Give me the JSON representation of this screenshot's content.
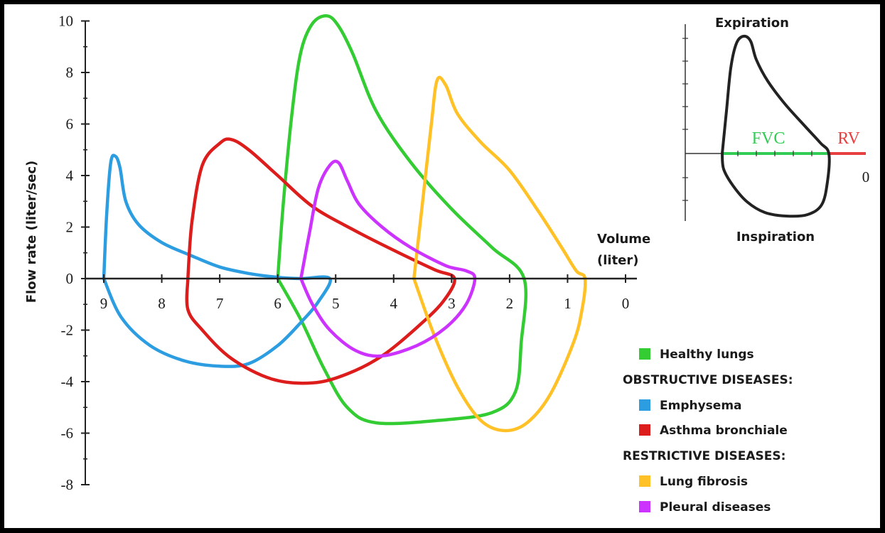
{
  "chart_data": [
    {
      "type": "line",
      "ylabel": "Flow rate (liter/sec)",
      "xlabel": "Volume (liter)",
      "xlim": [
        9,
        0
      ],
      "ylim": [
        -8,
        10
      ],
      "x_ticks": [
        "9",
        "8",
        "7",
        "6",
        "5",
        "4",
        "3",
        "2",
        "1",
        "0"
      ],
      "y_ticks": [
        "10",
        "8",
        "6",
        "4",
        "2",
        "0",
        "-2",
        "-4",
        "-6",
        "-8"
      ],
      "xlabel_lines": [
        "Volume",
        "(liter)"
      ],
      "series": [
        {
          "name": "Healthy lungs",
          "color": "#33cc33",
          "points": [
            [
              6.0,
              0
            ],
            [
              5.9,
              3
            ],
            [
              5.75,
              6.5
            ],
            [
              5.6,
              8.8
            ],
            [
              5.4,
              9.9
            ],
            [
              5.15,
              10.2
            ],
            [
              4.95,
              9.8
            ],
            [
              4.7,
              8.7
            ],
            [
              4.3,
              6.5
            ],
            [
              3.7,
              4.5
            ],
            [
              3.0,
              2.7
            ],
            [
              2.3,
              1.2
            ],
            [
              1.75,
              0
            ],
            [
              1.8,
              -2.5
            ],
            [
              1.9,
              -4.4
            ],
            [
              2.3,
              -5.2
            ],
            [
              3.2,
              -5.5
            ],
            [
              4.3,
              -5.6
            ],
            [
              4.8,
              -5.0
            ],
            [
              5.2,
              -3.5
            ],
            [
              5.6,
              -1.6
            ],
            [
              6.0,
              0
            ]
          ]
        },
        {
          "name": "Emphysema",
          "color": "#2b9de0",
          "points": [
            [
              9.0,
              0
            ],
            [
              8.95,
              2.5
            ],
            [
              8.88,
              4.5
            ],
            [
              8.8,
              4.75
            ],
            [
              8.72,
              4.3
            ],
            [
              8.62,
              3.0
            ],
            [
              8.4,
              2.1
            ],
            [
              8.0,
              1.4
            ],
            [
              7.5,
              0.9
            ],
            [
              7.0,
              0.45
            ],
            [
              6.5,
              0.2
            ],
            [
              6.0,
              0.05
            ],
            [
              5.6,
              0
            ],
            [
              5.1,
              0
            ],
            [
              5.3,
              -0.9
            ],
            [
              5.6,
              -1.7
            ],
            [
              6.0,
              -2.6
            ],
            [
              6.5,
              -3.3
            ],
            [
              7.0,
              -3.4
            ],
            [
              7.6,
              -3.2
            ],
            [
              8.2,
              -2.6
            ],
            [
              8.7,
              -1.5
            ],
            [
              9.0,
              0
            ]
          ]
        },
        {
          "name": "Asthma bronchiale",
          "color": "#dd1c1c",
          "points": [
            [
              7.55,
              0
            ],
            [
              7.48,
              2.2
            ],
            [
              7.3,
              4.4
            ],
            [
              7.0,
              5.25
            ],
            [
              6.8,
              5.4
            ],
            [
              6.5,
              5.0
            ],
            [
              6.0,
              4.0
            ],
            [
              5.4,
              2.8
            ],
            [
              4.7,
              1.9
            ],
            [
              4.0,
              1.1
            ],
            [
              3.3,
              0.35
            ],
            [
              2.95,
              0
            ],
            [
              3.15,
              -0.9
            ],
            [
              3.6,
              -1.9
            ],
            [
              4.2,
              -3.0
            ],
            [
              4.8,
              -3.7
            ],
            [
              5.4,
              -4.05
            ],
            [
              6.1,
              -3.9
            ],
            [
              6.8,
              -3.1
            ],
            [
              7.3,
              -2.0
            ],
            [
              7.55,
              -1.2
            ],
            [
              7.55,
              0
            ]
          ]
        },
        {
          "name": "Lung fibrosis",
          "color": "#ffc125",
          "points": [
            [
              3.65,
              0
            ],
            [
              3.5,
              3.0
            ],
            [
              3.35,
              6.0
            ],
            [
              3.25,
              7.7
            ],
            [
              3.1,
              7.5
            ],
            [
              2.9,
              6.4
            ],
            [
              2.5,
              5.3
            ],
            [
              2.0,
              4.2
            ],
            [
              1.5,
              2.6
            ],
            [
              1.1,
              1.2
            ],
            [
              0.85,
              0.3
            ],
            [
              0.7,
              0
            ],
            [
              0.75,
              -1.2
            ],
            [
              0.9,
              -2.5
            ],
            [
              1.3,
              -4.5
            ],
            [
              1.7,
              -5.6
            ],
            [
              2.1,
              -5.9
            ],
            [
              2.5,
              -5.5
            ],
            [
              2.9,
              -4.2
            ],
            [
              3.3,
              -2.2
            ],
            [
              3.65,
              0
            ]
          ]
        },
        {
          "name": "Pleural diseases",
          "color": "#cc33ff",
          "points": [
            [
              5.6,
              0
            ],
            [
              5.45,
              1.8
            ],
            [
              5.3,
              3.5
            ],
            [
              5.1,
              4.4
            ],
            [
              4.95,
              4.5
            ],
            [
              4.8,
              3.8
            ],
            [
              4.6,
              2.9
            ],
            [
              4.2,
              2.0
            ],
            [
              3.7,
              1.2
            ],
            [
              3.1,
              0.5
            ],
            [
              2.75,
              0.3
            ],
            [
              2.6,
              0
            ],
            [
              2.75,
              -1.0
            ],
            [
              3.1,
              -1.9
            ],
            [
              3.6,
              -2.6
            ],
            [
              4.2,
              -3.0
            ],
            [
              4.65,
              -2.8
            ],
            [
              5.1,
              -2.0
            ],
            [
              5.4,
              -1.0
            ],
            [
              5.6,
              0
            ]
          ]
        }
      ]
    },
    {
      "type": "line",
      "title_top": "Expiration",
      "title_bottom": "Inspiration",
      "fvc_label": "FVC",
      "rv_label": "RV",
      "zero_label": "0",
      "color": "#222222",
      "fvc_color": "#33cc55",
      "rv_color": "#e84040"
    }
  ],
  "legend": [
    {
      "kind": "item",
      "label": "Healthy lungs",
      "color": "#33cc33"
    },
    {
      "kind": "header",
      "label": "OBSTRUCTIVE DISEASES:"
    },
    {
      "kind": "item",
      "label": "Emphysema",
      "color": "#2b9de0"
    },
    {
      "kind": "item",
      "label": "Asthma bronchiale",
      "color": "#dd1c1c"
    },
    {
      "kind": "header",
      "label": "RESTRICTIVE DISEASES:"
    },
    {
      "kind": "item",
      "label": "Lung fibrosis",
      "color": "#ffc125"
    },
    {
      "kind": "item",
      "label": "Pleural diseases",
      "color": "#cc33ff"
    }
  ]
}
